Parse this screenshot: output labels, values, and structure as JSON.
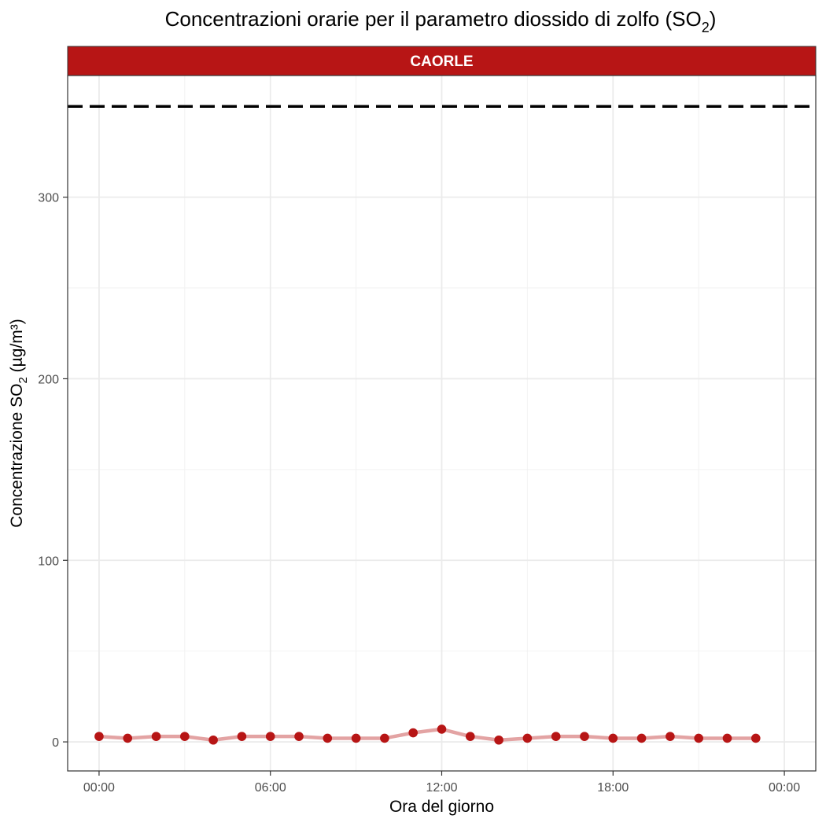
{
  "title": {
    "main": "Concentrazioni orarie per il parametro diossido di zolfo (SO",
    "sub": "2",
    "end": ")"
  },
  "facet": {
    "label": "CAORLE",
    "color": "#b71515"
  },
  "axes": {
    "xlabel": "Ora del giorno",
    "ylabel_main": "Concentrazione SO",
    "ylabel_sub": "2",
    "ylabel_end": " (µg/m³)"
  },
  "colors": {
    "points": "#b71515",
    "line": "#e3a3a3",
    "threshold": "#000000"
  },
  "chart_data": {
    "type": "line",
    "xlabel": "Ora del giorno",
    "ylabel": "Concentrazione SO2 (µg/m³)",
    "x_unit": "hour",
    "xlim": [
      -1.1,
      25.1
    ],
    "ylim": [
      -16,
      367
    ],
    "x_ticks": [
      0,
      6,
      12,
      18,
      24
    ],
    "x_tick_labels": [
      "00:00",
      "06:00",
      "12:00",
      "18:00",
      "00:00"
    ],
    "y_ticks": [
      0,
      100,
      200,
      300
    ],
    "y_tick_labels": [
      "0",
      "100",
      "200",
      "300"
    ],
    "threshold": 350,
    "threshold_style": "dashed",
    "grid": true,
    "series": [
      {
        "x": [
          0,
          1,
          2,
          3,
          4,
          5,
          6,
          7,
          8,
          9,
          10,
          11,
          12,
          13,
          14,
          15,
          16,
          17,
          18,
          19,
          20,
          21,
          22,
          23
        ],
        "values": [
          3,
          2,
          3,
          3,
          1,
          3,
          3,
          3,
          2,
          2,
          2,
          5,
          7,
          3,
          1,
          2,
          3,
          3,
          2,
          2,
          3,
          2,
          2,
          2
        ]
      }
    ]
  }
}
